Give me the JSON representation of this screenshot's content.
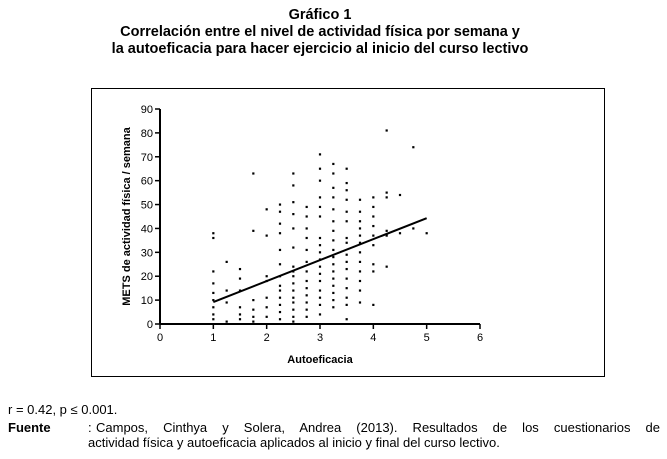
{
  "figure": {
    "title_line1": "Gráfico 1",
    "title_line2": "Correlación entre el nivel de actividad física por semana y",
    "title_line3": "la autoeficacia para hacer ejercicio al inicio del curso lectivo"
  },
  "stats": "r = 0.42, p ≤ 0.001.",
  "source": {
    "label": "Fuente",
    "line1": "Campos, Cinthya y Solera, Andrea (2013). Resultados de los cuestionarios de",
    "line2": "actividad física y autoeficacia aplicados al inicio y final del curso lectivo."
  },
  "chart_data": {
    "type": "scatter",
    "xlabel": "Autoeficacia",
    "ylabel": "METS de actividad física / semana",
    "xlim": [
      0,
      6
    ],
    "ylim": [
      0,
      90
    ],
    "xticks": [
      "0",
      "1",
      "2",
      "3",
      "4",
      "5",
      "6"
    ],
    "yticks": [
      "0",
      "10",
      "20",
      "30",
      "40",
      "50",
      "60",
      "70",
      "80",
      "90"
    ],
    "grid": false,
    "legend": "none",
    "colors": {
      "points": "#000000",
      "axis": "#000000",
      "trend": "#000000"
    },
    "trendline": {
      "x": [
        1,
        5
      ],
      "y": [
        9.2,
        44.3
      ]
    },
    "points": [
      {
        "x": 1.0,
        "y": 38
      },
      {
        "x": 1.0,
        "y": 36
      },
      {
        "x": 1.0,
        "y": 22
      },
      {
        "x": 1.0,
        "y": 17
      },
      {
        "x": 1.0,
        "y": 13
      },
      {
        "x": 1.0,
        "y": 10
      },
      {
        "x": 1.0,
        "y": 7
      },
      {
        "x": 1.0,
        "y": 4
      },
      {
        "x": 1.0,
        "y": 2
      },
      {
        "x": 1.25,
        "y": 26
      },
      {
        "x": 1.25,
        "y": 14
      },
      {
        "x": 1.25,
        "y": 9
      },
      {
        "x": 1.25,
        "y": 1
      },
      {
        "x": 1.5,
        "y": 23
      },
      {
        "x": 1.5,
        "y": 19
      },
      {
        "x": 1.5,
        "y": 14
      },
      {
        "x": 1.5,
        "y": 7
      },
      {
        "x": 1.5,
        "y": 4
      },
      {
        "x": 1.5,
        "y": 2
      },
      {
        "x": 1.75,
        "y": 63
      },
      {
        "x": 1.75,
        "y": 39
      },
      {
        "x": 1.75,
        "y": 10
      },
      {
        "x": 1.75,
        "y": 6
      },
      {
        "x": 1.75,
        "y": 3
      },
      {
        "x": 1.75,
        "y": 1
      },
      {
        "x": 2.0,
        "y": 48
      },
      {
        "x": 2.0,
        "y": 37
      },
      {
        "x": 2.0,
        "y": 20
      },
      {
        "x": 2.0,
        "y": 18
      },
      {
        "x": 2.0,
        "y": 11
      },
      {
        "x": 2.0,
        "y": 7
      },
      {
        "x": 2.0,
        "y": 3
      },
      {
        "x": 2.25,
        "y": 50
      },
      {
        "x": 2.25,
        "y": 47
      },
      {
        "x": 2.25,
        "y": 42
      },
      {
        "x": 2.25,
        "y": 38
      },
      {
        "x": 2.25,
        "y": 31
      },
      {
        "x": 2.25,
        "y": 25
      },
      {
        "x": 2.25,
        "y": 20
      },
      {
        "x": 2.25,
        "y": 16
      },
      {
        "x": 2.25,
        "y": 14
      },
      {
        "x": 2.25,
        "y": 11
      },
      {
        "x": 2.25,
        "y": 8
      },
      {
        "x": 2.25,
        "y": 5
      },
      {
        "x": 2.25,
        "y": 2
      },
      {
        "x": 2.5,
        "y": 63
      },
      {
        "x": 2.5,
        "y": 58
      },
      {
        "x": 2.5,
        "y": 51
      },
      {
        "x": 2.5,
        "y": 46
      },
      {
        "x": 2.5,
        "y": 40
      },
      {
        "x": 2.5,
        "y": 32
      },
      {
        "x": 2.5,
        "y": 24
      },
      {
        "x": 2.5,
        "y": 22
      },
      {
        "x": 2.5,
        "y": 20
      },
      {
        "x": 2.5,
        "y": 17
      },
      {
        "x": 2.5,
        "y": 14
      },
      {
        "x": 2.5,
        "y": 11
      },
      {
        "x": 2.5,
        "y": 9
      },
      {
        "x": 2.5,
        "y": 6
      },
      {
        "x": 2.5,
        "y": 3
      },
      {
        "x": 2.5,
        "y": 1
      },
      {
        "x": 2.75,
        "y": 49
      },
      {
        "x": 2.75,
        "y": 45
      },
      {
        "x": 2.75,
        "y": 40
      },
      {
        "x": 2.75,
        "y": 36
      },
      {
        "x": 2.75,
        "y": 31
      },
      {
        "x": 2.75,
        "y": 26
      },
      {
        "x": 2.75,
        "y": 22
      },
      {
        "x": 2.75,
        "y": 18
      },
      {
        "x": 2.75,
        "y": 15
      },
      {
        "x": 2.75,
        "y": 12
      },
      {
        "x": 2.75,
        "y": 9
      },
      {
        "x": 2.75,
        "y": 6
      },
      {
        "x": 2.75,
        "y": 3
      },
      {
        "x": 3.0,
        "y": 71
      },
      {
        "x": 3.0,
        "y": 65
      },
      {
        "x": 3.0,
        "y": 60
      },
      {
        "x": 3.0,
        "y": 53
      },
      {
        "x": 3.0,
        "y": 49
      },
      {
        "x": 3.0,
        "y": 45
      },
      {
        "x": 3.0,
        "y": 36
      },
      {
        "x": 3.0,
        "y": 33
      },
      {
        "x": 3.0,
        "y": 30
      },
      {
        "x": 3.0,
        "y": 27
      },
      {
        "x": 3.0,
        "y": 24
      },
      {
        "x": 3.0,
        "y": 21
      },
      {
        "x": 3.0,
        "y": 18
      },
      {
        "x": 3.0,
        "y": 14
      },
      {
        "x": 3.0,
        "y": 11
      },
      {
        "x": 3.0,
        "y": 8
      },
      {
        "x": 3.0,
        "y": 4
      },
      {
        "x": 3.25,
        "y": 67
      },
      {
        "x": 3.25,
        "y": 63
      },
      {
        "x": 3.25,
        "y": 57
      },
      {
        "x": 3.25,
        "y": 53
      },
      {
        "x": 3.25,
        "y": 48
      },
      {
        "x": 3.25,
        "y": 43
      },
      {
        "x": 3.25,
        "y": 39
      },
      {
        "x": 3.25,
        "y": 35
      },
      {
        "x": 3.25,
        "y": 31
      },
      {
        "x": 3.25,
        "y": 28
      },
      {
        "x": 3.25,
        "y": 25
      },
      {
        "x": 3.25,
        "y": 22
      },
      {
        "x": 3.25,
        "y": 19
      },
      {
        "x": 3.25,
        "y": 16
      },
      {
        "x": 3.25,
        "y": 13
      },
      {
        "x": 3.25,
        "y": 10
      },
      {
        "x": 3.25,
        "y": 7
      },
      {
        "x": 3.5,
        "y": 65
      },
      {
        "x": 3.5,
        "y": 59
      },
      {
        "x": 3.5,
        "y": 56
      },
      {
        "x": 3.5,
        "y": 52
      },
      {
        "x": 3.5,
        "y": 47
      },
      {
        "x": 3.5,
        "y": 43
      },
      {
        "x": 3.5,
        "y": 36
      },
      {
        "x": 3.5,
        "y": 34
      },
      {
        "x": 3.5,
        "y": 29
      },
      {
        "x": 3.5,
        "y": 26
      },
      {
        "x": 3.5,
        "y": 23
      },
      {
        "x": 3.5,
        "y": 19
      },
      {
        "x": 3.5,
        "y": 15
      },
      {
        "x": 3.5,
        "y": 11
      },
      {
        "x": 3.5,
        "y": 8
      },
      {
        "x": 3.5,
        "y": 2
      },
      {
        "x": 3.75,
        "y": 52
      },
      {
        "x": 3.75,
        "y": 47
      },
      {
        "x": 3.75,
        "y": 43
      },
      {
        "x": 3.75,
        "y": 40
      },
      {
        "x": 3.75,
        "y": 37
      },
      {
        "x": 3.75,
        "y": 34
      },
      {
        "x": 3.75,
        "y": 30
      },
      {
        "x": 3.75,
        "y": 26
      },
      {
        "x": 3.75,
        "y": 22
      },
      {
        "x": 3.75,
        "y": 18
      },
      {
        "x": 3.75,
        "y": 14
      },
      {
        "x": 3.75,
        "y": 9
      },
      {
        "x": 4.0,
        "y": 53
      },
      {
        "x": 4.0,
        "y": 49
      },
      {
        "x": 4.0,
        "y": 45
      },
      {
        "x": 4.0,
        "y": 41
      },
      {
        "x": 4.0,
        "y": 37
      },
      {
        "x": 4.0,
        "y": 33
      },
      {
        "x": 4.0,
        "y": 25
      },
      {
        "x": 4.0,
        "y": 22
      },
      {
        "x": 4.0,
        "y": 8
      },
      {
        "x": 4.25,
        "y": 81
      },
      {
        "x": 4.25,
        "y": 55
      },
      {
        "x": 4.25,
        "y": 53
      },
      {
        "x": 4.25,
        "y": 39
      },
      {
        "x": 4.25,
        "y": 37
      },
      {
        "x": 4.25,
        "y": 24
      },
      {
        "x": 4.5,
        "y": 54
      },
      {
        "x": 4.5,
        "y": 38
      },
      {
        "x": 4.75,
        "y": 74
      },
      {
        "x": 4.75,
        "y": 40
      },
      {
        "x": 5.0,
        "y": 38
      }
    ]
  }
}
